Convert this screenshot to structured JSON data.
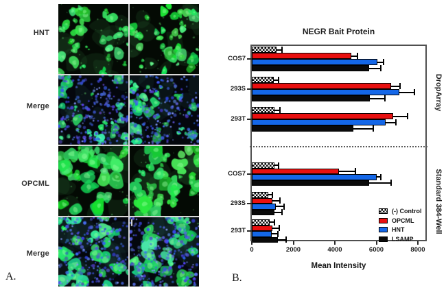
{
  "panel_a": {
    "label": "A.",
    "columns": 2,
    "rows": [
      {
        "label": "HNT",
        "type": "green"
      },
      {
        "label": "Merge",
        "type": "merge"
      },
      {
        "label": "OPCML",
        "type": "green"
      },
      {
        "label": "Merge",
        "type": "merge"
      }
    ]
  },
  "panel_b": {
    "label": "B."
  },
  "chart_data": {
    "type": "bar",
    "orientation": "horizontal",
    "title": "NEGR Bait Protein",
    "xlabel": "Mean Intensity",
    "xlim": [
      0,
      8500
    ],
    "xticks": [
      0,
      2000,
      4000,
      6000,
      8000
    ],
    "grid": false,
    "legend_position": "lower right",
    "legend": [
      {
        "label": "(-) Control",
        "swatch": "checkered",
        "color": "#0d0d0d"
      },
      {
        "label": "OPCML",
        "swatch": "solid",
        "color": "#e81010"
      },
      {
        "label": "HNT",
        "swatch": "solid",
        "color": "#1467e8"
      },
      {
        "label": "LSAMP",
        "swatch": "solid",
        "color": "#0a0a0a"
      }
    ],
    "sections": [
      {
        "label": "DropArray",
        "groups": [
          {
            "category": "COS7",
            "values": [
              1200,
              4800,
              6050,
              5650
            ],
            "errors": [
              250,
              300,
              300,
              550
            ]
          },
          {
            "category": "293S",
            "values": [
              1050,
              6700,
              7100,
              5700
            ],
            "errors": [
              250,
              450,
              750,
              700
            ]
          },
          {
            "category": "293T",
            "values": [
              1100,
              6800,
              6450,
              4900
            ],
            "errors": [
              250,
              700,
              500,
              950
            ]
          }
        ]
      },
      {
        "label": "Standard 384-Well",
        "groups": [
          {
            "category": "COS7",
            "values": [
              1100,
              4200,
              6000,
              5650
            ],
            "errors": [
              200,
              800,
              200,
              1050
            ]
          },
          {
            "category": "293S",
            "values": [
              800,
              1000,
              1150,
              1100
            ],
            "errors": [
              200,
              350,
              400,
              350
            ]
          },
          {
            "category": "293T",
            "values": [
              850,
              1000,
              950,
              1250
            ],
            "errors": [
              250,
              320,
              300,
              400
            ]
          }
        ]
      }
    ]
  }
}
